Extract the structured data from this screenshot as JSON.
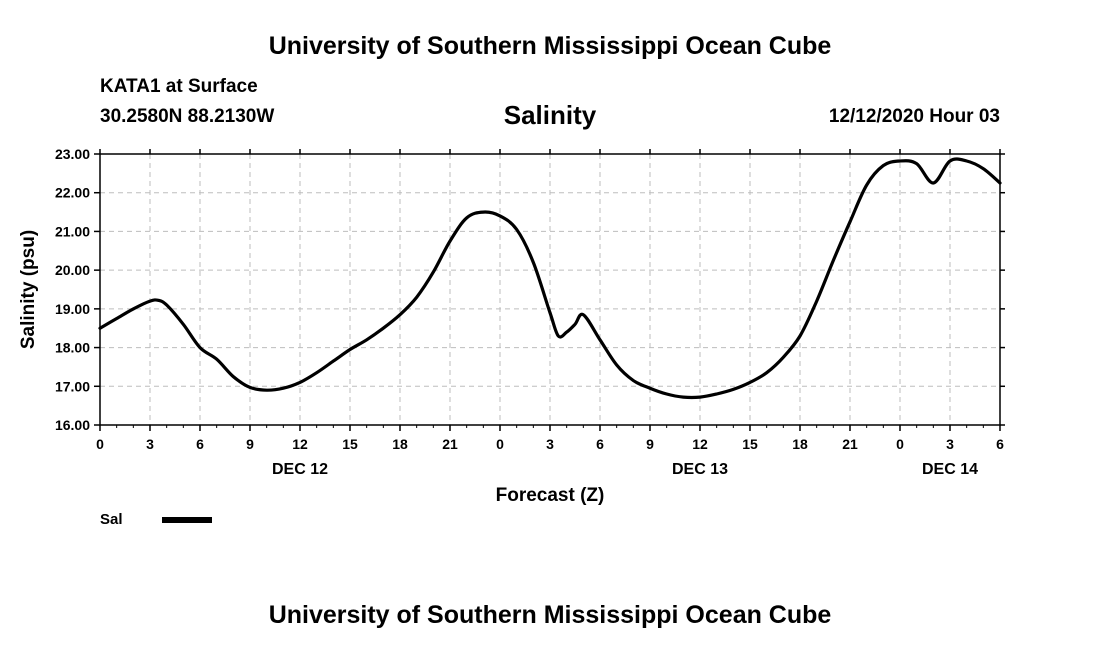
{
  "header": {
    "top_title": "University of Southern Mississippi Ocean Cube",
    "bottom_title": "University of Southern Mississippi Ocean Cube",
    "station": "KATA1 at Surface",
    "coords": "30.2580N 88.2130W",
    "datetime": "12/12/2020 Hour 03"
  },
  "chart_data": {
    "type": "line",
    "title": "Salinity",
    "xlabel": "Forecast (Z)",
    "ylabel": "Salinity (psu)",
    "ylim": [
      16.0,
      23.0
    ],
    "xlim": [
      0,
      54
    ],
    "x_unit": "forecast hours from DEC 12 00Z",
    "y_ticks": [
      "16.00",
      "17.00",
      "18.00",
      "19.00",
      "20.00",
      "21.00",
      "22.00",
      "23.00"
    ],
    "y_tick_values": [
      16,
      17,
      18,
      19,
      20,
      21,
      22,
      23
    ],
    "x_tick_labels": [
      "0",
      "3",
      "6",
      "9",
      "12",
      "15",
      "18",
      "21",
      "0",
      "3",
      "6",
      "9",
      "12",
      "15",
      "18",
      "21",
      "0",
      "3",
      "6"
    ],
    "date_labels": [
      {
        "label": "DEC 12",
        "hour": 12
      },
      {
        "label": "DEC 13",
        "hour": 36
      },
      {
        "label": "DEC 14",
        "hour": 51
      }
    ],
    "grid": true,
    "legend": [
      {
        "name": "Sal",
        "color": "#000000"
      }
    ],
    "series": [
      {
        "name": "Sal",
        "x": [
          0,
          1,
          2,
          3,
          3.5,
          4,
          5,
          6,
          7,
          8,
          9,
          10,
          11,
          12,
          13,
          14,
          15,
          16,
          17,
          18,
          19,
          20,
          21,
          22,
          23,
          24,
          25,
          26,
          27,
          27.5,
          28,
          28.5,
          29,
          30,
          31,
          32,
          33,
          34,
          35,
          36,
          37,
          38,
          39,
          40,
          41,
          42,
          43,
          44,
          45,
          46,
          47,
          48,
          49,
          50,
          51,
          52,
          53,
          54
        ],
        "values": [
          18.5,
          18.75,
          19.0,
          19.2,
          19.22,
          19.1,
          18.6,
          18.0,
          17.7,
          17.25,
          16.97,
          16.9,
          16.95,
          17.1,
          17.35,
          17.65,
          17.95,
          18.2,
          18.5,
          18.85,
          19.3,
          19.95,
          20.75,
          21.35,
          21.5,
          21.4,
          21.05,
          20.2,
          18.9,
          18.3,
          18.4,
          18.6,
          18.85,
          18.2,
          17.55,
          17.15,
          16.95,
          16.8,
          16.72,
          16.72,
          16.8,
          16.92,
          17.1,
          17.35,
          17.75,
          18.3,
          19.2,
          20.25,
          21.25,
          22.2,
          22.7,
          22.82,
          22.75,
          22.25,
          22.82,
          22.82,
          22.62,
          22.25
        ]
      }
    ]
  }
}
